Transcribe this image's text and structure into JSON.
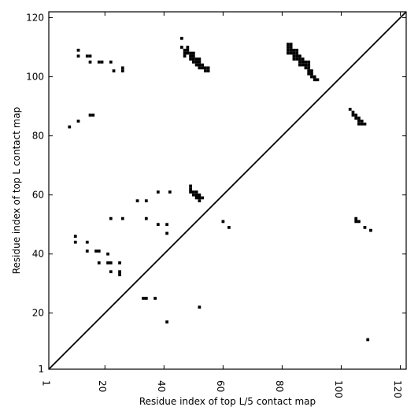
{
  "chart_data": {
    "type": "scatter",
    "title": "",
    "xlabel": "Residue index of top L/5 contact map",
    "ylabel": "Residue index of top L contact map",
    "xlim": [
      1,
      122
    ],
    "ylim": [
      1,
      122
    ],
    "xticks": [
      1,
      20,
      40,
      60,
      80,
      100,
      120
    ],
    "yticks": [
      1,
      20,
      40,
      60,
      80,
      100,
      120
    ],
    "xtick_labels": [
      "1",
      "20",
      "40",
      "60",
      "80",
      "100",
      "120"
    ],
    "ytick_labels": [
      "1",
      "20",
      "40",
      "60",
      "80",
      "100",
      "120"
    ],
    "xtick_rotation": 90,
    "grid": false,
    "marker": "square",
    "marker_color": "#000000",
    "diagonal": {
      "from": [
        1,
        1
      ],
      "to": [
        122,
        122
      ]
    },
    "lower_triangle_points": [
      [
        46,
        113
      ],
      [
        46,
        110
      ],
      [
        47,
        109
      ],
      [
        47,
        108
      ],
      [
        47,
        107
      ],
      [
        48,
        110
      ],
      [
        48,
        109
      ],
      [
        48,
        108
      ],
      [
        49,
        108
      ],
      [
        49,
        107
      ],
      [
        49,
        106
      ],
      [
        50,
        108
      ],
      [
        50,
        107
      ],
      [
        50,
        106
      ],
      [
        50,
        105
      ],
      [
        51,
        106
      ],
      [
        51,
        105
      ],
      [
        51,
        104
      ],
      [
        52,
        106
      ],
      [
        52,
        105
      ],
      [
        52,
        104
      ],
      [
        52,
        103
      ],
      [
        53,
        104
      ],
      [
        53,
        103
      ],
      [
        54,
        103
      ],
      [
        54,
        102
      ],
      [
        55,
        103
      ],
      [
        55,
        102
      ],
      [
        82,
        111
      ],
      [
        82,
        110
      ],
      [
        82,
        109
      ],
      [
        82,
        108
      ],
      [
        83,
        111
      ],
      [
        83,
        110
      ],
      [
        83,
        109
      ],
      [
        83,
        108
      ],
      [
        84,
        109
      ],
      [
        84,
        108
      ],
      [
        84,
        107
      ],
      [
        84,
        106
      ],
      [
        85,
        109
      ],
      [
        85,
        108
      ],
      [
        85,
        107
      ],
      [
        85,
        106
      ],
      [
        86,
        107
      ],
      [
        86,
        106
      ],
      [
        86,
        105
      ],
      [
        86,
        104
      ],
      [
        87,
        106
      ],
      [
        87,
        105
      ],
      [
        87,
        104
      ],
      [
        88,
        105
      ],
      [
        88,
        104
      ],
      [
        88,
        103
      ],
      [
        89,
        105
      ],
      [
        89,
        104
      ],
      [
        89,
        103
      ],
      [
        89,
        102
      ],
      [
        89,
        101
      ],
      [
        90,
        102
      ],
      [
        90,
        101
      ],
      [
        90,
        100
      ],
      [
        91,
        100
      ],
      [
        91,
        99
      ],
      [
        92,
        99
      ],
      [
        103,
        89
      ],
      [
        104,
        88
      ],
      [
        104,
        87
      ],
      [
        105,
        87
      ],
      [
        105,
        86
      ],
      [
        106,
        86
      ],
      [
        106,
        85
      ],
      [
        106,
        84
      ],
      [
        107,
        85
      ],
      [
        107,
        84
      ],
      [
        108,
        84
      ],
      [
        49,
        63
      ],
      [
        49,
        62
      ],
      [
        49,
        61
      ],
      [
        50,
        61
      ],
      [
        50,
        60
      ],
      [
        51,
        61
      ],
      [
        51,
        60
      ],
      [
        51,
        59
      ],
      [
        52,
        60
      ],
      [
        52,
        59
      ],
      [
        52,
        58
      ],
      [
        53,
        59
      ],
      [
        38,
        61
      ],
      [
        42,
        61
      ],
      [
        31,
        58
      ],
      [
        34,
        58
      ],
      [
        22,
        52
      ],
      [
        26,
        52
      ],
      [
        34,
        52
      ],
      [
        38,
        50
      ],
      [
        41,
        50
      ],
      [
        41,
        47
      ],
      [
        60,
        51
      ],
      [
        62,
        49
      ],
      [
        105,
        52
      ],
      [
        105,
        51
      ],
      [
        106,
        51
      ],
      [
        108,
        49
      ],
      [
        110,
        48
      ],
      [
        10,
        46
      ],
      [
        10,
        44
      ],
      [
        14,
        44
      ],
      [
        14,
        41
      ],
      [
        17,
        41
      ],
      [
        18,
        41
      ],
      [
        18,
        37
      ],
      [
        21,
        40
      ],
      [
        21,
        37
      ],
      [
        22,
        37
      ],
      [
        25,
        37
      ],
      [
        22,
        34
      ],
      [
        25,
        34
      ],
      [
        25,
        33
      ],
      [
        33,
        25
      ],
      [
        34,
        25
      ],
      [
        37,
        25
      ],
      [
        52,
        22
      ],
      [
        41,
        17
      ],
      [
        109,
        11
      ],
      [
        11,
        109
      ],
      [
        11,
        107
      ],
      [
        14,
        107
      ],
      [
        15,
        107
      ],
      [
        15,
        105
      ],
      [
        18,
        105
      ],
      [
        19,
        105
      ],
      [
        22,
        105
      ],
      [
        23,
        102
      ],
      [
        26,
        103
      ],
      [
        26,
        102
      ],
      [
        15,
        87
      ],
      [
        16,
        87
      ],
      [
        11,
        85
      ],
      [
        8,
        83
      ]
    ]
  }
}
